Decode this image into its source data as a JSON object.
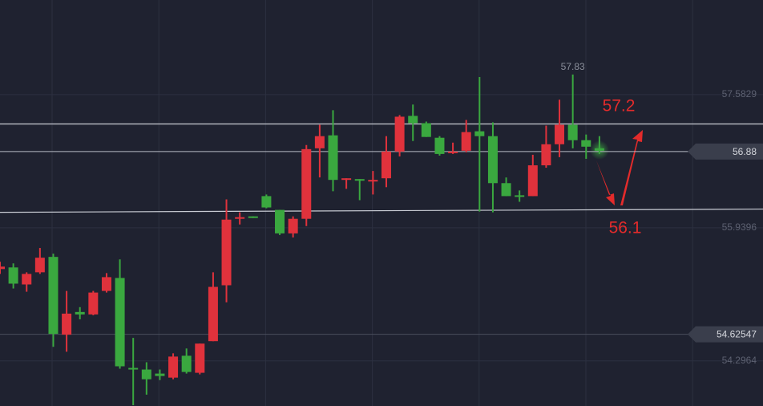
{
  "chart_data": {
    "type": "candlestick",
    "open": [
      55.43,
      55.45,
      55.24,
      55.39,
      55.58,
      54.62,
      54.9,
      54.87,
      55.16,
      55.32,
      54.21,
      54.19,
      54.14,
      54.09,
      54.36,
      54.15,
      54.54,
      55.23,
      56.05,
      56.08,
      56.33,
      56.16,
      55.87,
      56.05,
      56.92,
      57.08,
      56.53,
      56.54,
      56.51,
      56.55,
      56.88,
      57.32,
      57.23,
      57.05,
      56.86,
      56.89,
      57.13,
      57.07,
      56.49,
      56.34,
      56.33,
      56.71,
      56.97,
      57.21,
      57.02,
      56.92
    ],
    "high": [
      55.52,
      55.5,
      55.39,
      55.69,
      55.62,
      55.16,
      54.96,
      55.16,
      55.38,
      55.55,
      54.58,
      54.28,
      54.19,
      54.39,
      54.45,
      54.51,
      55.39,
      56.29,
      56.13,
      56.08,
      56.35,
      56.16,
      56.08,
      56.96,
      57.21,
      57.39,
      56.55,
      56.54,
      56.64,
      57.07,
      57.33,
      57.46,
      57.25,
      57.07,
      56.99,
      57.27,
      57.8,
      57.24,
      56.56,
      56.4,
      56.84,
      57.2,
      57.52,
      57.83,
      57.09,
      57.07
    ],
    "low": [
      55.37,
      55.19,
      55.15,
      55.37,
      54.47,
      54.41,
      54.81,
      54.86,
      55.14,
      54.2,
      53.75,
      53.88,
      54.06,
      54.07,
      54.14,
      54.13,
      54.54,
      55.02,
      55.98,
      56.06,
      56.18,
      55.85,
      55.82,
      55.96,
      56.56,
      56.39,
      56.42,
      56.28,
      56.35,
      56.44,
      56.82,
      57.01,
      57.06,
      56.83,
      56.85,
      56.87,
      56.14,
      56.13,
      56.33,
      56.26,
      56.33,
      56.68,
      56.81,
      56.92,
      56.79,
      56.85
    ],
    "close": [
      55.46,
      55.25,
      55.37,
      55.57,
      54.63,
      54.88,
      54.87,
      55.14,
      55.33,
      54.23,
      54.19,
      54.07,
      54.11,
      54.35,
      54.16,
      54.51,
      55.21,
      56.04,
      56.07,
      56.06,
      56.19,
      55.87,
      56.05,
      56.91,
      57.07,
      56.53,
      56.55,
      56.53,
      56.53,
      56.88,
      57.31,
      57.23,
      57.06,
      56.85,
      56.88,
      57.12,
      57.07,
      56.49,
      56.33,
      56.33,
      56.71,
      56.97,
      57.21,
      57.02,
      56.94,
      56.89
    ],
    "up_color": "#e0323c",
    "down_color": "#3aa83f",
    "ylim": [
      53.74,
      58.75
    ],
    "yticks": [
      57.5829,
      55.9396,
      54.2964
    ],
    "grid": true,
    "hlines": [
      57.22
    ],
    "trendline": [
      56.13,
      56.17
    ],
    "price_tags": [
      56.88,
      54.62547
    ],
    "max_label": "57.83",
    "annotations": [
      "57.2",
      "56.1"
    ]
  }
}
